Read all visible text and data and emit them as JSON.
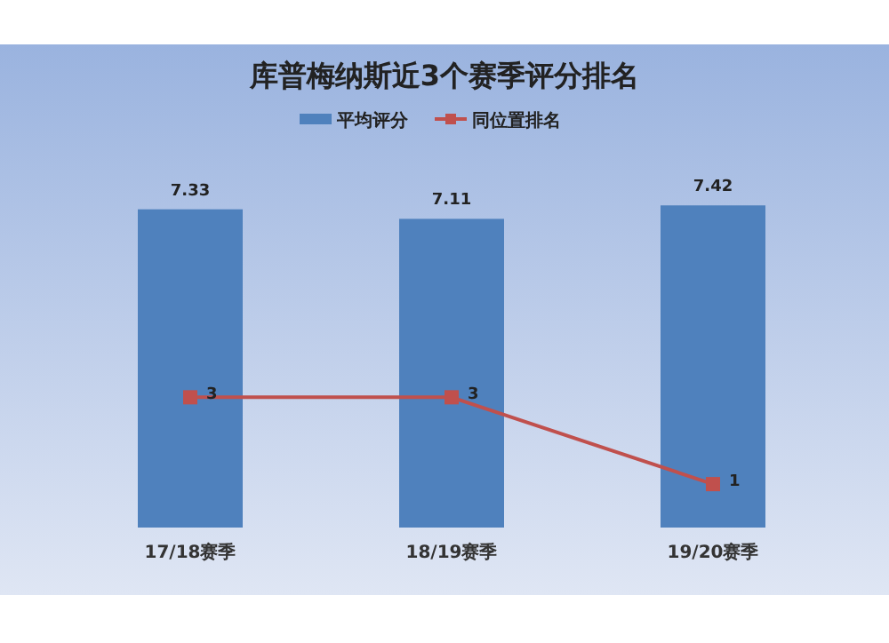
{
  "chart_data": {
    "type": "bar",
    "title": "库普梅纳斯近3个赛季评分排名",
    "categories": [
      "17/18赛季",
      "18/19赛季",
      "19/20赛季"
    ],
    "series": [
      {
        "name": "平均评分",
        "color": "#4f81bd",
        "values": [
          7.33,
          7.11,
          7.42
        ]
      },
      {
        "name": "同位置排名",
        "type": "line",
        "color": "#c0504d",
        "marker": "square",
        "values": [
          3,
          3,
          1
        ]
      }
    ],
    "tick_labels": "x",
    "data_labels": true,
    "legend": "top"
  }
}
